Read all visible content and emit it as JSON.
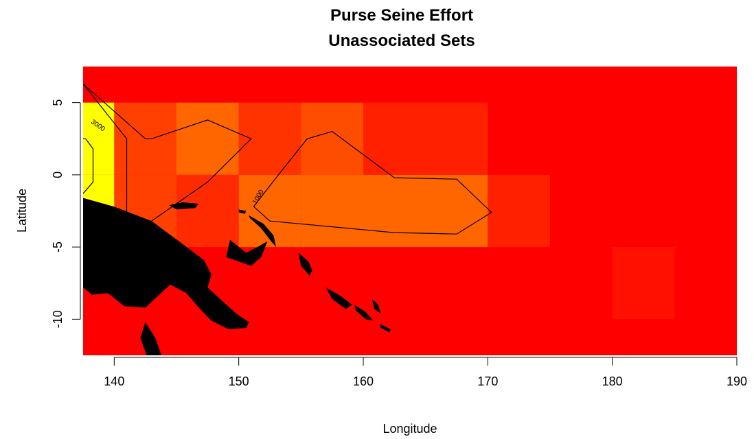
{
  "chart_data": {
    "type": "heatmap",
    "title": "Purse Seine Effort",
    "subtitle": "Unassociated Sets",
    "xlabel": "Longitude",
    "ylabel": "Latitude",
    "xlim": [
      137.5,
      190
    ],
    "ylim": [
      -12.5,
      7.5
    ],
    "x_ticks": [
      140,
      150,
      160,
      170,
      180,
      190
    ],
    "y_ticks": [
      5,
      0,
      -5,
      -10
    ],
    "y_tick_labels": [
      "5",
      "0",
      "-5",
      "-10"
    ],
    "colors": {
      "background": "#ff0000",
      "high": "#ffff00",
      "mid_high": "#ff6600",
      "mid": "#ff4000",
      "low_mid": "#ff2000",
      "low": "#ff1000",
      "land": "#000000"
    },
    "cells": [
      {
        "lon": [
          137.5,
          140
        ],
        "lat": [
          0,
          5
        ],
        "color": "#ffff00"
      },
      {
        "lon": [
          137.5,
          140
        ],
        "lat": [
          -5,
          0
        ],
        "color": "#ffff00"
      },
      {
        "lon": [
          140,
          145
        ],
        "lat": [
          0,
          5
        ],
        "color": "#ff4000"
      },
      {
        "lon": [
          140,
          145
        ],
        "lat": [
          -5,
          0
        ],
        "color": "#ff4000"
      },
      {
        "lon": [
          145,
          150
        ],
        "lat": [
          0,
          5
        ],
        "color": "#ff6600"
      },
      {
        "lon": [
          145,
          150
        ],
        "lat": [
          -5,
          0
        ],
        "color": "#ff2a00"
      },
      {
        "lon": [
          150,
          155
        ],
        "lat": [
          0,
          5
        ],
        "color": "#ff3300"
      },
      {
        "lon": [
          150,
          155
        ],
        "lat": [
          -5,
          0
        ],
        "color": "#ff6600"
      },
      {
        "lon": [
          155,
          160
        ],
        "lat": [
          0,
          5
        ],
        "color": "#ff4d00"
      },
      {
        "lon": [
          155,
          160
        ],
        "lat": [
          -5,
          0
        ],
        "color": "#ff6600"
      },
      {
        "lon": [
          160,
          170
        ],
        "lat": [
          0,
          5
        ],
        "color": "#ff2000"
      },
      {
        "lon": [
          160,
          170
        ],
        "lat": [
          -5,
          0
        ],
        "color": "#ff6600"
      },
      {
        "lon": [
          170,
          175
        ],
        "lat": [
          -5,
          0
        ],
        "color": "#ff2000"
      },
      {
        "lon": [
          180,
          185
        ],
        "lat": [
          -10,
          -5
        ],
        "color": "#ff1000"
      }
    ],
    "contours": [
      {
        "label": "3000",
        "points": [
          [
            137.5,
            6.3
          ],
          [
            142.5,
            2.5
          ],
          [
            143,
            2.5
          ],
          [
            147.5,
            3.8
          ],
          [
            151,
            2.5
          ],
          [
            147.5,
            -0.5
          ],
          [
            143,
            -3.2
          ],
          [
            141,
            -4.2
          ],
          [
            141,
            2.5
          ],
          [
            137.5,
            6.3
          ]
        ]
      },
      {
        "label": "1000",
        "points": [
          [
            151.2,
            -2.2
          ],
          [
            153,
            -0.2
          ],
          [
            155.5,
            2.5
          ],
          [
            157.5,
            3
          ],
          [
            162.5,
            -0.2
          ],
          [
            167.5,
            -0.3
          ],
          [
            170.3,
            -2.6
          ],
          [
            167.5,
            -4.1
          ],
          [
            162.5,
            -4
          ],
          [
            152.5,
            -3.2
          ],
          [
            151.2,
            -2.2
          ]
        ]
      },
      {
        "label": "",
        "points": [
          [
            137.5,
            2.5
          ],
          [
            137.7,
            2.5
          ],
          [
            138.3,
            1.8
          ],
          [
            138.3,
            -0.5
          ],
          [
            137.5,
            -1.3
          ]
        ]
      }
    ],
    "contour_label_positions": [
      {
        "label": "3000",
        "lon": 138.6,
        "lat": 3.3,
        "angle": 35
      },
      {
        "label": "1000",
        "lon": 151.7,
        "lat": -1.6,
        "angle": -60
      }
    ],
    "land": [
      [
        [
          137.5,
          -1.6
        ],
        [
          140,
          -2.2
        ],
        [
          143,
          -3.2
        ],
        [
          145.5,
          -4.8
        ],
        [
          147.2,
          -5.9
        ],
        [
          147.8,
          -6.9
        ],
        [
          147.5,
          -7.8
        ],
        [
          148.5,
          -8.6
        ],
        [
          149.8,
          -9.6
        ],
        [
          150.8,
          -10.2
        ],
        [
          150.6,
          -10.6
        ],
        [
          149.2,
          -10.7
        ],
        [
          147.8,
          -10.1
        ],
        [
          146.8,
          -9.2
        ],
        [
          145.8,
          -8.2
        ],
        [
          144.5,
          -7.6
        ],
        [
          143.5,
          -8.4
        ],
        [
          142.5,
          -9.2
        ],
        [
          140.8,
          -9.1
        ],
        [
          139.5,
          -8.2
        ],
        [
          138.2,
          -8.3
        ],
        [
          137.5,
          -7.8
        ]
      ],
      [
        [
          149.3,
          -4.5
        ],
        [
          150.6,
          -5.4
        ],
        [
          151.5,
          -5.0
        ],
        [
          152.3,
          -4.6
        ],
        [
          151.8,
          -5.7
        ],
        [
          151,
          -6.3
        ],
        [
          150.0,
          -6.0
        ],
        [
          149.0,
          -5.7
        ]
      ],
      [
        [
          150.8,
          -2.8
        ],
        [
          152.0,
          -3.4
        ],
        [
          152.8,
          -4.2
        ],
        [
          153.0,
          -5.0
        ],
        [
          152.6,
          -4.6
        ],
        [
          151.8,
          -3.7
        ],
        [
          150.9,
          -3.0
        ]
      ],
      [
        [
          154.8,
          -5.4
        ],
        [
          155.6,
          -6.0
        ],
        [
          155.9,
          -6.6
        ],
        [
          155.7,
          -7.0
        ],
        [
          155.0,
          -6.3
        ]
      ],
      [
        [
          157.0,
          -7.8
        ],
        [
          158.2,
          -8.4
        ],
        [
          159.1,
          -9.0
        ],
        [
          158.6,
          -9.3
        ],
        [
          157.5,
          -8.6
        ]
      ],
      [
        [
          159.3,
          -9.0
        ],
        [
          160.2,
          -9.5
        ],
        [
          160.8,
          -10.1
        ],
        [
          160.2,
          -10.0
        ],
        [
          159.4,
          -9.4
        ]
      ],
      [
        [
          160.7,
          -8.6
        ],
        [
          161.2,
          -9.0
        ],
        [
          161.4,
          -9.6
        ],
        [
          160.9,
          -9.3
        ]
      ],
      [
        [
          161.3,
          -10.3
        ],
        [
          162.2,
          -10.7
        ],
        [
          162.1,
          -10.9
        ],
        [
          161.4,
          -10.6
        ]
      ],
      [
        [
          144.4,
          -2.1
        ],
        [
          145.5,
          -1.9
        ],
        [
          146.8,
          -2.0
        ],
        [
          146.5,
          -2.3
        ],
        [
          145.0,
          -2.4
        ]
      ],
      [
        [
          150.0,
          -2.4
        ],
        [
          150.6,
          -2.5
        ],
        [
          150.5,
          -2.7
        ],
        [
          150.0,
          -2.6
        ]
      ],
      [
        [
          142.5,
          -10.2
        ],
        [
          143.3,
          -11.3
        ],
        [
          143.8,
          -12.5
        ],
        [
          142.6,
          -12.5
        ],
        [
          142.1,
          -11.3
        ]
      ]
    ]
  }
}
